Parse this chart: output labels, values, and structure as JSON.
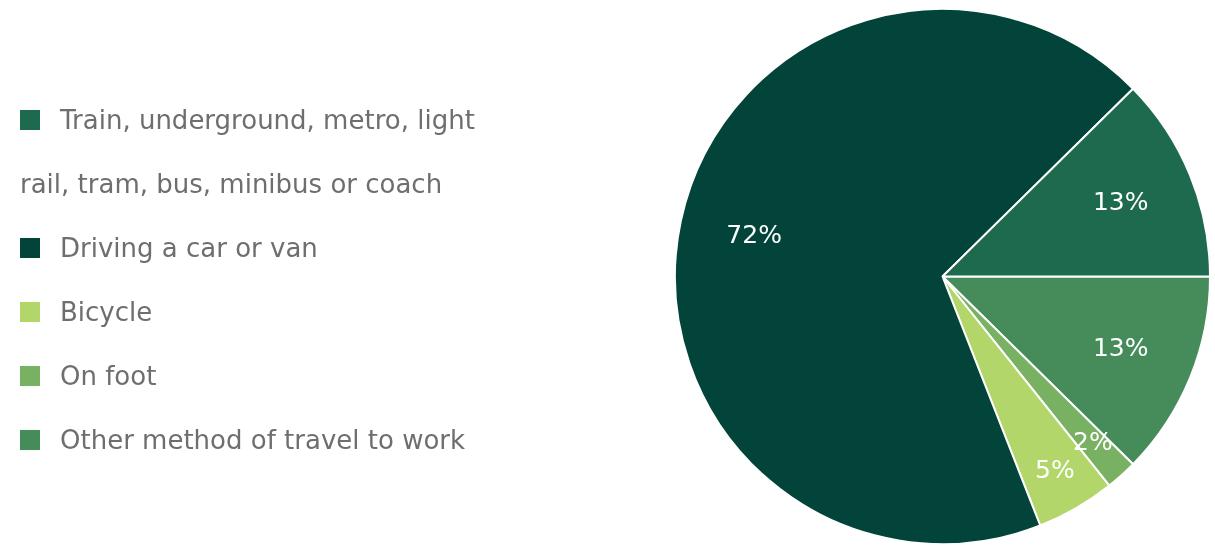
{
  "chart_data": {
    "type": "pie",
    "categories": [
      "Train, underground, metro, light rail, tram, bus, minibus or coach",
      "Driving a car or van",
      "Bicycle",
      "On foot",
      "Other method of travel to work"
    ],
    "values": [
      13,
      72,
      5,
      2,
      13
    ],
    "value_labels": [
      "13%",
      "72%",
      "5%",
      "2%",
      "13%"
    ],
    "colors": [
      "#1e6a4f",
      "#03443a",
      "#b3d66a",
      "#79b163",
      "#468c5a"
    ],
    "legend": "left"
  }
}
